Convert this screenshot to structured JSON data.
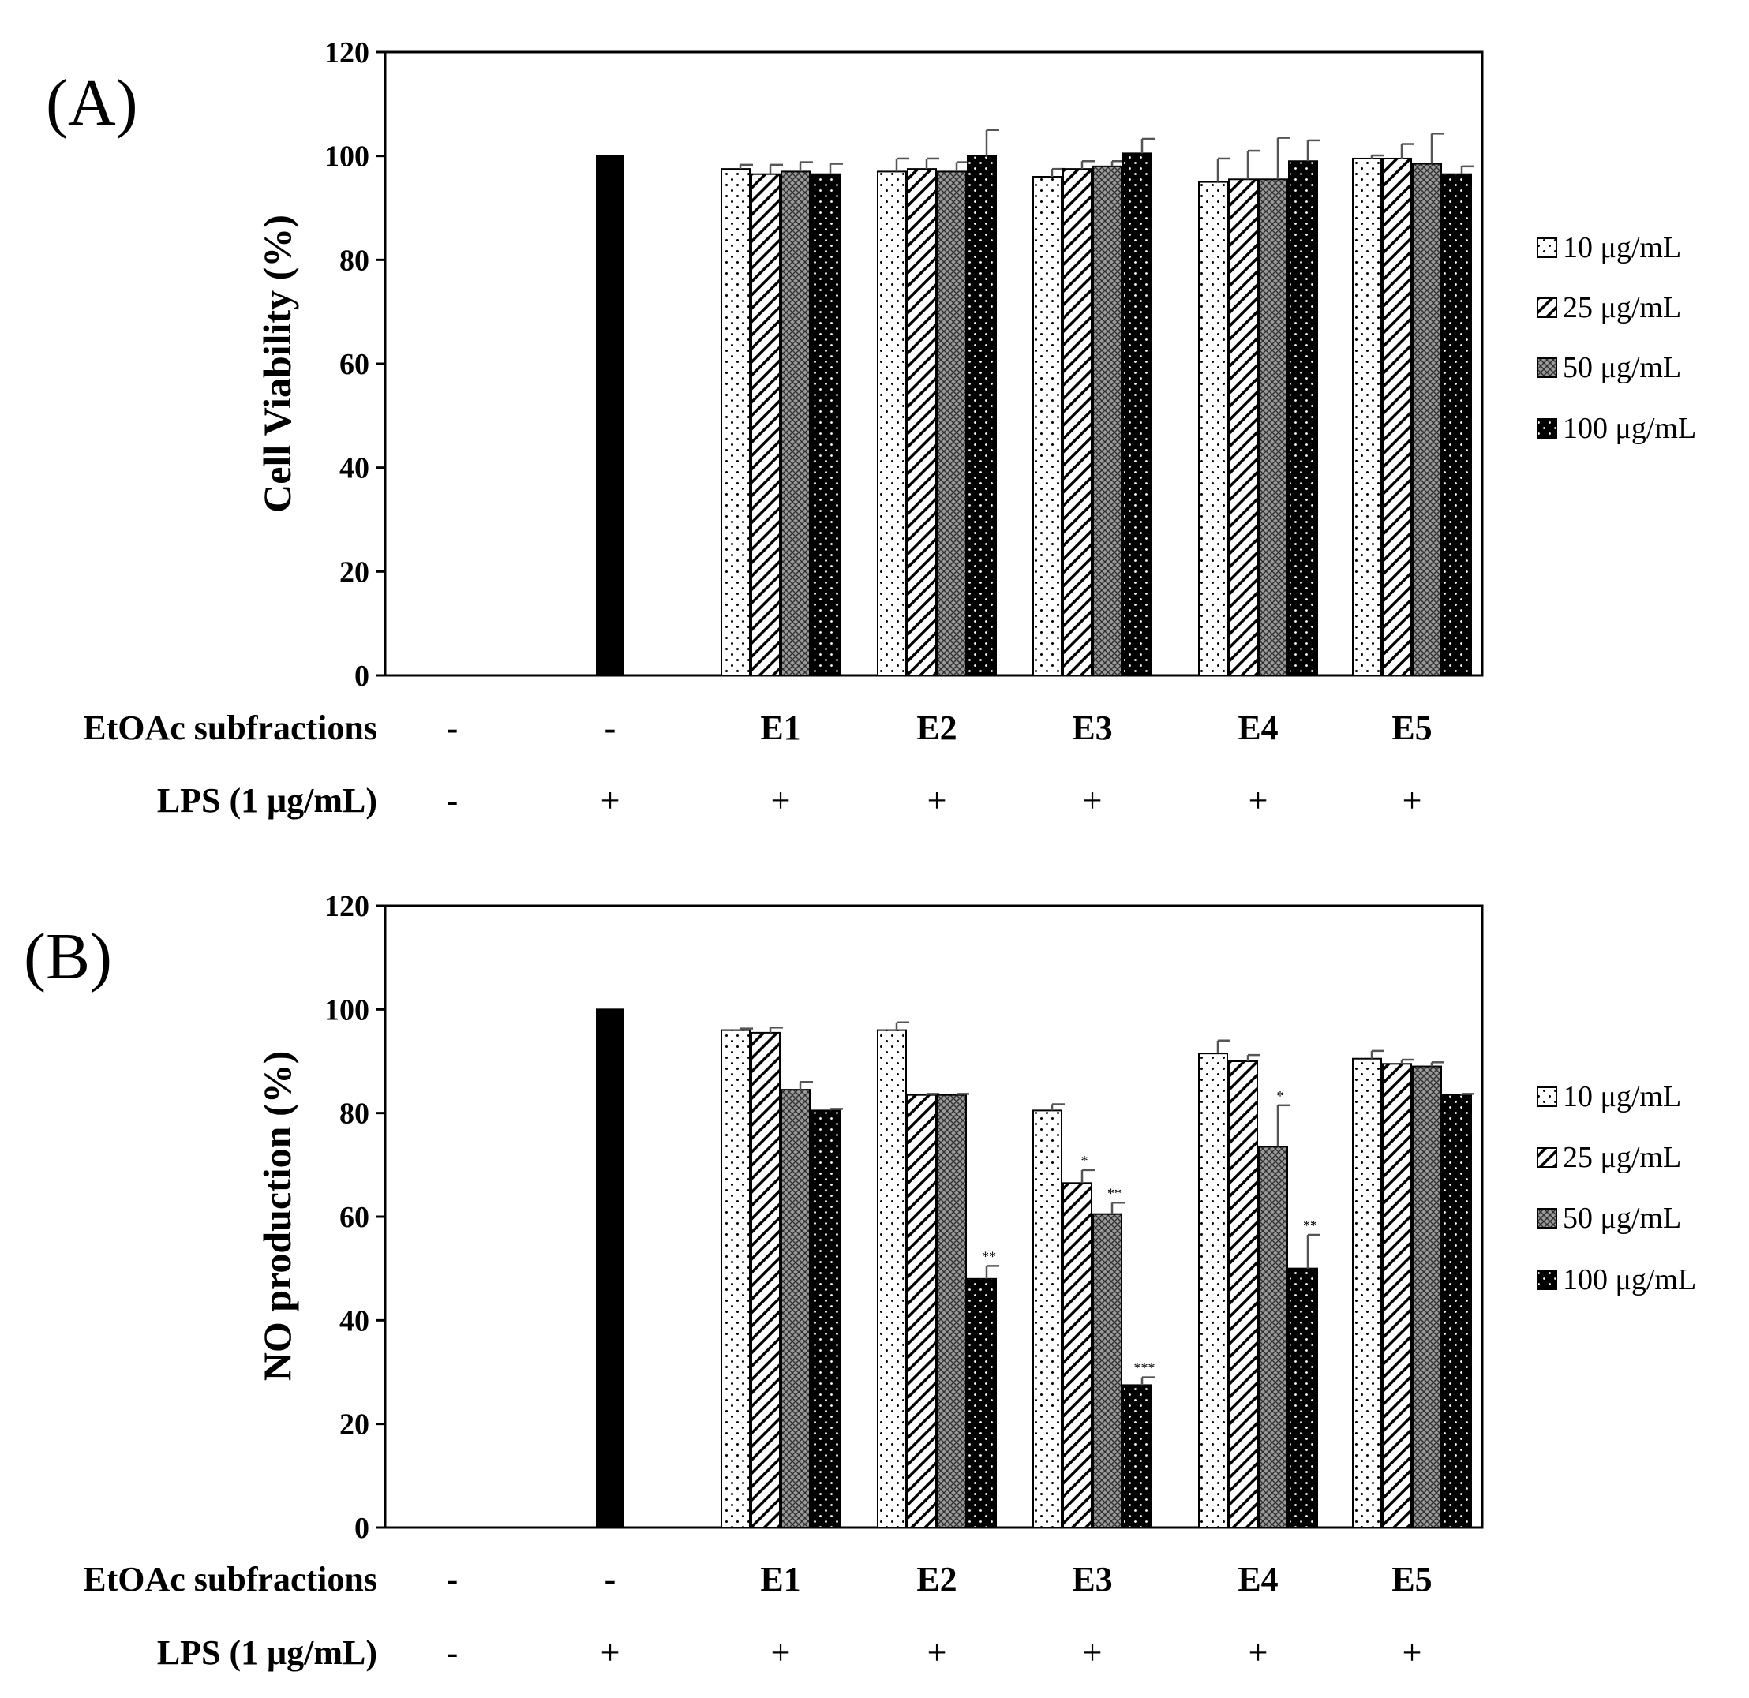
{
  "colors": {
    "background": "#ffffff",
    "ink": "#000000"
  },
  "legend": {
    "entries": [
      "10 μg/mL",
      "25 μg/mL",
      "50 μg/mL",
      "100 μg/mL"
    ],
    "patterns": [
      "dots-white",
      "diagonal-hatch",
      "crosshatch-gray",
      "dots-black"
    ]
  },
  "chart_data": [
    {
      "type": "bar",
      "panel": "(A)",
      "ylabel": "Cell Viability (%)",
      "xlabel": "",
      "ylim": [
        0,
        120
      ],
      "yticks": [
        0,
        20,
        40,
        60,
        80,
        100,
        120
      ],
      "row_labels": {
        "extract": "EtOAc subfractions",
        "lps": "LPS (1 μg/mL)"
      },
      "groups": [
        {
          "extract": "-",
          "lps": "-",
          "bars": []
        },
        {
          "extract": "-",
          "lps": "+",
          "bars": [
            {
              "name": "LPS only",
              "value": 100,
              "error": 0
            }
          ]
        },
        {
          "extract": "E1",
          "lps": "+",
          "bars": [
            {
              "name": "10 μg/mL",
              "value": 97.5,
              "error": 0.8,
              "sig": ""
            },
            {
              "name": "25 μg/mL",
              "value": 96.5,
              "error": 1.8,
              "sig": ""
            },
            {
              "name": "50 μg/mL",
              "value": 97,
              "error": 1.8,
              "sig": ""
            },
            {
              "name": "100 μg/mL",
              "value": 96.5,
              "error": 2.0,
              "sig": ""
            }
          ]
        },
        {
          "extract": "E2",
          "lps": "+",
          "bars": [
            {
              "name": "10 μg/mL",
              "value": 97,
              "error": 2.5,
              "sig": ""
            },
            {
              "name": "25 μg/mL",
              "value": 97.5,
              "error": 2.0,
              "sig": ""
            },
            {
              "name": "50 μg/mL",
              "value": 97,
              "error": 1.8,
              "sig": ""
            },
            {
              "name": "100 μg/mL",
              "value": 100,
              "error": 5.0,
              "sig": ""
            }
          ]
        },
        {
          "extract": "E3",
          "lps": "+",
          "bars": [
            {
              "name": "10 μg/mL",
              "value": 96,
              "error": 1.5,
              "sig": ""
            },
            {
              "name": "25 μg/mL",
              "value": 97.5,
              "error": 1.5,
              "sig": ""
            },
            {
              "name": "50 μg/mL",
              "value": 98,
              "error": 1.0,
              "sig": ""
            },
            {
              "name": "100 μg/mL",
              "value": 100.5,
              "error": 2.8,
              "sig": ""
            }
          ]
        },
        {
          "extract": "E4",
          "lps": "+",
          "bars": [
            {
              "name": "10 μg/mL",
              "value": 95,
              "error": 4.5,
              "sig": ""
            },
            {
              "name": "25 μg/mL",
              "value": 95.5,
              "error": 5.5,
              "sig": ""
            },
            {
              "name": "50 μg/mL",
              "value": 95.5,
              "error": 8.0,
              "sig": ""
            },
            {
              "name": "100 μg/mL",
              "value": 99,
              "error": 4.0,
              "sig": ""
            }
          ]
        },
        {
          "extract": "E5",
          "lps": "+",
          "bars": [
            {
              "name": "10 μg/mL",
              "value": 99.5,
              "error": 0.6,
              "sig": ""
            },
            {
              "name": "25 μg/mL",
              "value": 99.5,
              "error": 2.8,
              "sig": ""
            },
            {
              "name": "50 μg/mL",
              "value": 98.5,
              "error": 5.8,
              "sig": ""
            },
            {
              "name": "100 μg/mL",
              "value": 96.5,
              "error": 1.5,
              "sig": ""
            }
          ]
        }
      ]
    },
    {
      "type": "bar",
      "panel": "(B)",
      "ylabel": "NO production (%)",
      "xlabel": "",
      "ylim": [
        0,
        120
      ],
      "yticks": [
        0,
        20,
        40,
        60,
        80,
        100,
        120
      ],
      "row_labels": {
        "extract": "EtOAc subfractions",
        "lps": "LPS (1 μg/mL)"
      },
      "groups": [
        {
          "extract": "-",
          "lps": "-",
          "bars": []
        },
        {
          "extract": "-",
          "lps": "+",
          "bars": [
            {
              "name": "LPS only",
              "value": 100,
              "error": 0
            }
          ]
        },
        {
          "extract": "E1",
          "lps": "+",
          "bars": [
            {
              "name": "10 μg/mL",
              "value": 96,
              "error": 0.3,
              "sig": ""
            },
            {
              "name": "25 μg/mL",
              "value": 95.5,
              "error": 1.0,
              "sig": ""
            },
            {
              "name": "50 μg/mL",
              "value": 84.5,
              "error": 1.5,
              "sig": ""
            },
            {
              "name": "100 μg/mL",
              "value": 80.5,
              "error": 0.3,
              "sig": ""
            }
          ]
        },
        {
          "extract": "E2",
          "lps": "+",
          "bars": [
            {
              "name": "10 μg/mL",
              "value": 96,
              "error": 1.5,
              "sig": ""
            },
            {
              "name": "25 μg/mL",
              "value": 83.5,
              "error": 0.2,
              "sig": ""
            },
            {
              "name": "50 μg/mL",
              "value": 83.5,
              "error": 0.2,
              "sig": ""
            },
            {
              "name": "100 μg/mL",
              "value": 48,
              "error": 2.5,
              "sig": "**"
            }
          ]
        },
        {
          "extract": "E3",
          "lps": "+",
          "bars": [
            {
              "name": "10 μg/mL",
              "value": 80.5,
              "error": 1.2,
              "sig": ""
            },
            {
              "name": "25 μg/mL",
              "value": 66.5,
              "error": 2.5,
              "sig": "*"
            },
            {
              "name": "50 μg/mL",
              "value": 60.5,
              "error": 2.2,
              "sig": "**"
            },
            {
              "name": "100 μg/mL",
              "value": 27.5,
              "error": 1.5,
              "sig": "***"
            }
          ]
        },
        {
          "extract": "E4",
          "lps": "+",
          "bars": [
            {
              "name": "10 μg/mL",
              "value": 91.5,
              "error": 2.5,
              "sig": ""
            },
            {
              "name": "25 μg/mL",
              "value": 90,
              "error": 1.2,
              "sig": ""
            },
            {
              "name": "50 μg/mL",
              "value": 73.5,
              "error": 8.0,
              "sig": "*"
            },
            {
              "name": "100 μg/mL",
              "value": 50,
              "error": 6.5,
              "sig": "**"
            }
          ]
        },
        {
          "extract": "E5",
          "lps": "+",
          "bars": [
            {
              "name": "10 μg/mL",
              "value": 90.5,
              "error": 1.5,
              "sig": ""
            },
            {
              "name": "25 μg/mL",
              "value": 89.5,
              "error": 0.8,
              "sig": ""
            },
            {
              "name": "50 μg/mL",
              "value": 89,
              "error": 0.8,
              "sig": ""
            },
            {
              "name": "100 μg/mL",
              "value": 83.5,
              "error": 0.2,
              "sig": ""
            }
          ]
        }
      ]
    }
  ]
}
